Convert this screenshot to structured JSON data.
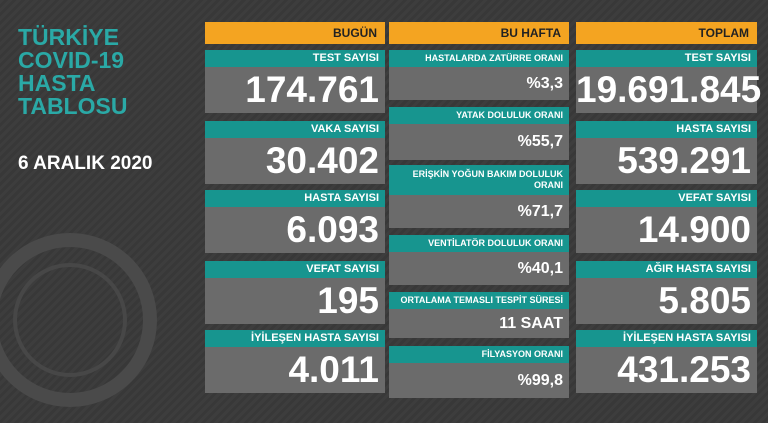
{
  "title": [
    "TÜRKİYE",
    "COVID-19",
    "HASTA",
    "TABLOSU"
  ],
  "date": "6 ARALIK 2020",
  "columns": [
    {
      "header": "BUGÜN",
      "cards": [
        {
          "label": "TEST SAYISI",
          "value": "174.761"
        },
        {
          "label": "VAKA SAYISI",
          "value": "30.402"
        },
        {
          "label": "HASTA SAYISI",
          "value": "6.093"
        },
        {
          "label": "VEFAT SAYISI",
          "value": "195"
        },
        {
          "label": "İYİLEŞEN HASTA SAYISI",
          "value": "4.011"
        }
      ]
    },
    {
      "header": "BU HAFTA",
      "cards": [
        {
          "label": "HASTALARDA ZATÜRRE ORANI",
          "value": "%3,3"
        },
        {
          "label": "YATAK DOLULUK ORANI",
          "value": "%55,7"
        },
        {
          "label": "ERİŞKİN YOĞUN BAKIM DOLULUK ORANI",
          "value": "%71,7"
        },
        {
          "label": "VENTİLATÖR DOLULUK ORANI",
          "value": "%40,1"
        },
        {
          "label": "ORTALAMA TEMASLI TESPİT SÜRESİ",
          "value": "11 SAAT"
        },
        {
          "label": "FİLYASYON ORANI",
          "value": "%99,8"
        }
      ]
    },
    {
      "header": "TOPLAM",
      "cards": [
        {
          "label": "TEST SAYISI",
          "value": "19.691.845"
        },
        {
          "label": "HASTA SAYISI",
          "value": "539.291"
        },
        {
          "label": "VEFAT SAYISI",
          "value": "14.900"
        },
        {
          "label": "AĞIR HASTA SAYISI",
          "value": "5.805"
        },
        {
          "label": "İYİLEŞEN HASTA SAYISI",
          "value": "431.253"
        }
      ]
    }
  ]
}
